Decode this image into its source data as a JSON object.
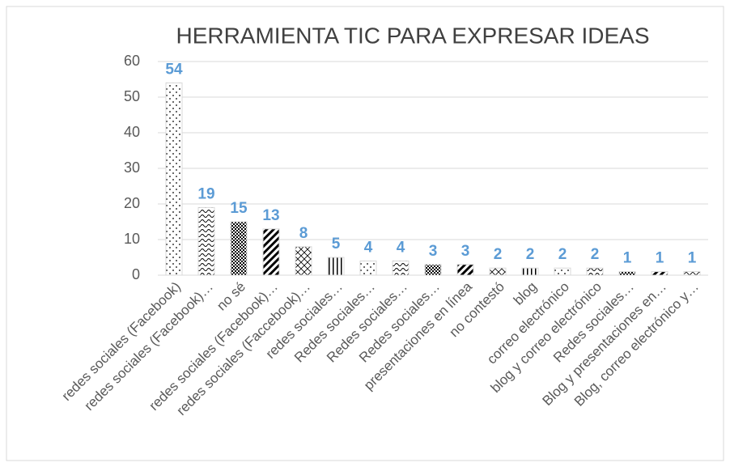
{
  "chart_data": {
    "type": "bar",
    "title": "HERRAMIENTA TIC PARA EXPRESAR IDEAS",
    "categories": [
      "redes sociales (Facebook)",
      "redes sociales (Facebook)…",
      "no sé",
      "redes sociales (Facebook)…",
      "redes sociales (Faccebook)…",
      "redes sociales…",
      "Redes sociales…",
      "Redes sociales…",
      "Redes sociales…",
      "presentaciones en línea",
      "no contestó",
      "blog",
      "correo electrónico",
      "blog y correo electrónico",
      "Redes sociales…",
      "Blog y presentaciones en…",
      "Blog, correo electrónico y…"
    ],
    "values": [
      54,
      19,
      15,
      13,
      8,
      5,
      4,
      4,
      3,
      3,
      2,
      2,
      2,
      2,
      1,
      1,
      1
    ],
    "color": "#000000",
    "ylim": [
      0,
      60
    ],
    "yticks": [
      0,
      10,
      20,
      30,
      40,
      50,
      60
    ],
    "grid": true
  }
}
